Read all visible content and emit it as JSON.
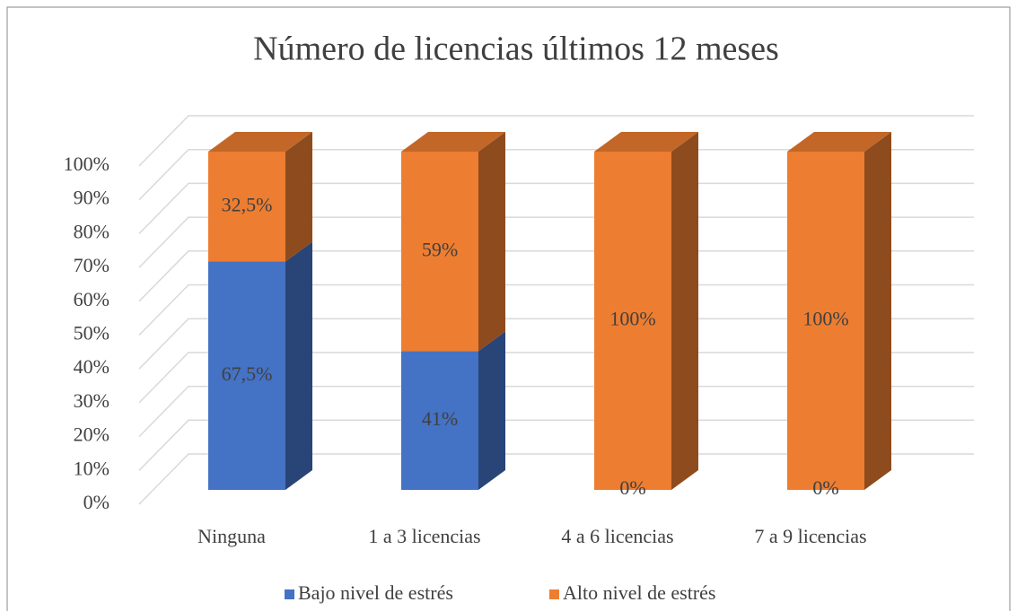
{
  "chart_data": {
    "type": "stacked_bar_3d",
    "title": "Número de licencias últimos 12 meses",
    "categories": [
      "Ninguna",
      "1 a 3 licencias",
      "4 a 6 licencias",
      "7 a 9 licencias"
    ],
    "series": [
      {
        "name": "Bajo nivel de estrés",
        "color": "#4472c4",
        "values": [
          67.5,
          41,
          0,
          0
        ],
        "value_labels": [
          "67,5%",
          "41%",
          "0%",
          "0%"
        ]
      },
      {
        "name": "Alto nivel de estrés",
        "color": "#ed7d31",
        "values": [
          32.5,
          59,
          100,
          100
        ],
        "value_labels": [
          "32,5%",
          "59%",
          "100%",
          "100%"
        ]
      }
    ],
    "ylim": [
      0,
      100
    ],
    "yticks": [
      {
        "value": 0,
        "label": "0%"
      },
      {
        "value": 10,
        "label": "10%"
      },
      {
        "value": 20,
        "label": "20%"
      },
      {
        "value": 30,
        "label": "30%"
      },
      {
        "value": 40,
        "label": "40%"
      },
      {
        "value": 50,
        "label": "50%"
      },
      {
        "value": 60,
        "label": "60%"
      },
      {
        "value": 70,
        "label": "70%"
      },
      {
        "value": 80,
        "label": "80%"
      },
      {
        "value": 90,
        "label": "90%"
      },
      {
        "value": 100,
        "label": "100%"
      }
    ],
    "grid": true,
    "legend": "bottom"
  }
}
